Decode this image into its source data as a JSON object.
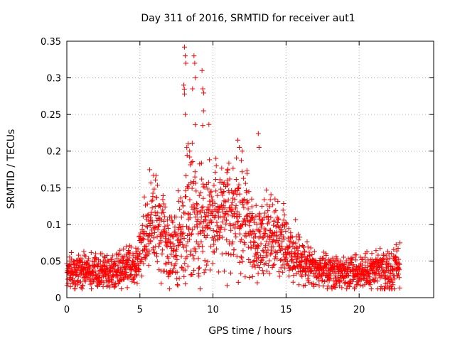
{
  "chart_data": {
    "type": "scatter",
    "title": "Day 311 of 2016, SRMTID for receiver aut1",
    "xlabel": "GPS time / hours",
    "ylabel": "SRMTID / TECUs",
    "xlim": [
      0,
      25.1
    ],
    "ylim": [
      0,
      0.35
    ],
    "x_ticks": [
      0,
      5,
      10,
      15,
      20
    ],
    "x_tick_labels": [
      "0",
      "5",
      "10",
      "15",
      "20"
    ],
    "y_ticks": [
      0,
      0.05,
      0.1,
      0.15,
      0.2,
      0.25,
      0.3,
      0.35
    ],
    "y_tick_labels": [
      "0",
      "0.05",
      "0.1",
      "0.15",
      "0.2",
      "0.25",
      "0.3",
      "0.35"
    ],
    "grid": true,
    "marker": "plus",
    "color": "#ff0000",
    "series": [
      {
        "name": "SRMTID aut1",
        "points_note": "dense scatter of SRMTID values from 0 to ~22.8 h",
        "profile": [
          {
            "t": 0.0,
            "mean": 0.035,
            "spread": 0.012,
            "max": 0.06
          },
          {
            "t": 1.0,
            "mean": 0.032,
            "spread": 0.012,
            "max": 0.065
          },
          {
            "t": 2.0,
            "mean": 0.035,
            "spread": 0.012,
            "max": 0.06
          },
          {
            "t": 3.0,
            "mean": 0.035,
            "spread": 0.012,
            "max": 0.06
          },
          {
            "t": 4.0,
            "mean": 0.036,
            "spread": 0.013,
            "max": 0.075
          },
          {
            "t": 4.7,
            "mean": 0.04,
            "spread": 0.013,
            "max": 0.075
          },
          {
            "t": 5.0,
            "mean": 0.06,
            "spread": 0.015,
            "max": 0.085
          },
          {
            "t": 5.5,
            "mean": 0.085,
            "spread": 0.025,
            "max": 0.185
          },
          {
            "t": 6.0,
            "mean": 0.1,
            "spread": 0.03,
            "max": 0.18
          },
          {
            "t": 6.5,
            "mean": 0.09,
            "spread": 0.03,
            "max": 0.17
          },
          {
            "t": 7.0,
            "mean": 0.07,
            "spread": 0.025,
            "max": 0.11
          },
          {
            "t": 7.5,
            "mean": 0.065,
            "spread": 0.025,
            "max": 0.11
          },
          {
            "t": 8.0,
            "mean": 0.1,
            "spread": 0.04,
            "max": 0.34
          },
          {
            "t": 8.5,
            "mean": 0.11,
            "spread": 0.05,
            "max": 0.27
          },
          {
            "t": 9.0,
            "mean": 0.1,
            "spread": 0.045,
            "max": 0.33
          },
          {
            "t": 9.5,
            "mean": 0.1,
            "spread": 0.04,
            "max": 0.31
          },
          {
            "t": 10.0,
            "mean": 0.095,
            "spread": 0.03,
            "max": 0.18
          },
          {
            "t": 10.5,
            "mean": 0.11,
            "spread": 0.035,
            "max": 0.18
          },
          {
            "t": 11.0,
            "mean": 0.11,
            "spread": 0.035,
            "max": 0.19
          },
          {
            "t": 11.5,
            "mean": 0.11,
            "spread": 0.035,
            "max": 0.22
          },
          {
            "t": 12.0,
            "mean": 0.11,
            "spread": 0.035,
            "max": 0.2
          },
          {
            "t": 12.5,
            "mean": 0.09,
            "spread": 0.03,
            "max": 0.2
          },
          {
            "t": 13.0,
            "mean": 0.08,
            "spread": 0.025,
            "max": 0.225
          },
          {
            "t": 13.5,
            "mean": 0.085,
            "spread": 0.03,
            "max": 0.15
          },
          {
            "t": 14.0,
            "mean": 0.085,
            "spread": 0.03,
            "max": 0.14
          },
          {
            "t": 14.5,
            "mean": 0.08,
            "spread": 0.025,
            "max": 0.13
          },
          {
            "t": 15.0,
            "mean": 0.07,
            "spread": 0.025,
            "max": 0.13
          },
          {
            "t": 15.5,
            "mean": 0.06,
            "spread": 0.02,
            "max": 0.13
          },
          {
            "t": 16.0,
            "mean": 0.05,
            "spread": 0.015,
            "max": 0.09
          },
          {
            "t": 17.0,
            "mean": 0.04,
            "spread": 0.013,
            "max": 0.065
          },
          {
            "t": 18.0,
            "mean": 0.035,
            "spread": 0.012,
            "max": 0.06
          },
          {
            "t": 19.0,
            "mean": 0.033,
            "spread": 0.012,
            "max": 0.055
          },
          {
            "t": 20.0,
            "mean": 0.035,
            "spread": 0.012,
            "max": 0.06
          },
          {
            "t": 21.0,
            "mean": 0.038,
            "spread": 0.013,
            "max": 0.065
          },
          {
            "t": 22.0,
            "mean": 0.036,
            "spread": 0.014,
            "max": 0.07
          },
          {
            "t": 22.8,
            "mean": 0.04,
            "spread": 0.015,
            "max": 0.075
          }
        ],
        "outliers": [
          {
            "t": 8.05,
            "v": 0.342
          },
          {
            "t": 8.1,
            "v": 0.33
          },
          {
            "t": 8.15,
            "v": 0.32
          },
          {
            "t": 8.1,
            "v": 0.25
          },
          {
            "t": 8.7,
            "v": 0.33
          },
          {
            "t": 8.75,
            "v": 0.32
          },
          {
            "t": 8.8,
            "v": 0.3
          },
          {
            "t": 9.25,
            "v": 0.31
          },
          {
            "t": 9.3,
            "v": 0.285
          },
          {
            "t": 9.35,
            "v": 0.255
          },
          {
            "t": 9.3,
            "v": 0.235
          },
          {
            "t": 8.6,
            "v": 0.285
          },
          {
            "t": 8.0,
            "v": 0.29
          },
          {
            "t": 8.4,
            "v": 0.2
          },
          {
            "t": 8.3,
            "v": 0.21
          },
          {
            "t": 13.1,
            "v": 0.224
          },
          {
            "t": 13.15,
            "v": 0.205
          },
          {
            "t": 11.7,
            "v": 0.215
          },
          {
            "t": 11.8,
            "v": 0.205
          },
          {
            "t": 10.2,
            "v": 0.19
          },
          {
            "t": 12.0,
            "v": 0.2
          }
        ]
      }
    ]
  }
}
